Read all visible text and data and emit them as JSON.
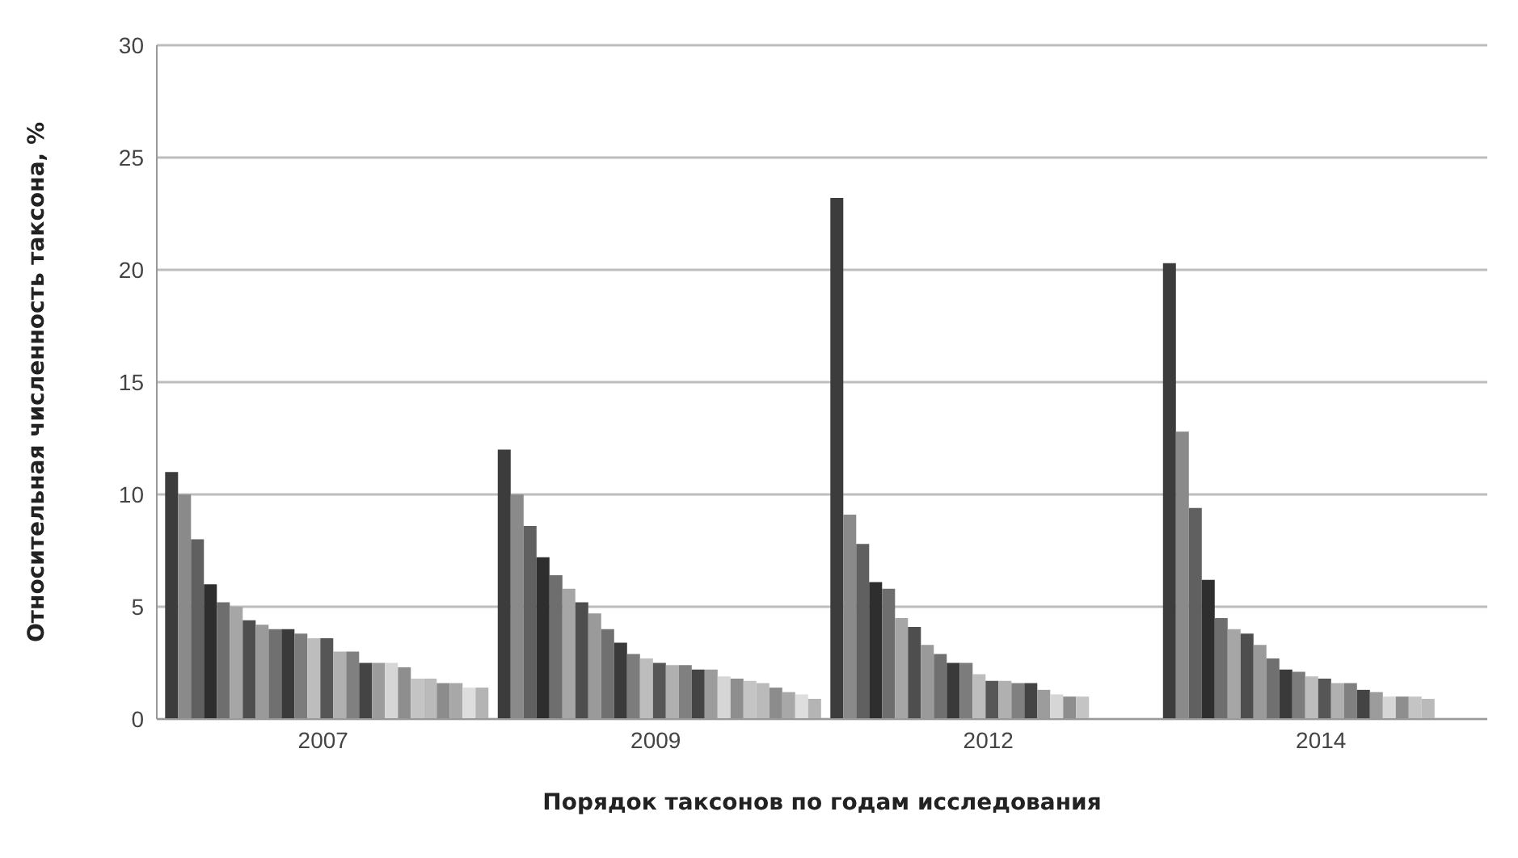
{
  "chart_data": {
    "type": "bar",
    "xlabel": "Порядок таксонов по годам исследования",
    "ylabel": "Относительная численность таксона, %",
    "categories": [
      "2007",
      "2009",
      "2012",
      "2014"
    ],
    "ylim": [
      0,
      30
    ],
    "yticks": [
      0,
      5,
      10,
      15,
      20,
      25,
      30
    ],
    "grid": "y",
    "series": [
      {
        "color": "#3c3c3c",
        "values": [
          11.0,
          12.0,
          23.2,
          20.3
        ]
      },
      {
        "color": "#8a8a8a",
        "values": [
          10.0,
          10.0,
          9.1,
          12.8
        ]
      },
      {
        "color": "#606060",
        "values": [
          8.0,
          8.6,
          7.8,
          9.4
        ]
      },
      {
        "color": "#2e2e2e",
        "values": [
          6.0,
          7.2,
          6.1,
          6.2
        ]
      },
      {
        "color": "#6e6e6e",
        "values": [
          5.2,
          6.4,
          5.8,
          4.5
        ]
      },
      {
        "color": "#a6a6a6",
        "values": [
          5.0,
          5.8,
          4.5,
          4.0
        ]
      },
      {
        "color": "#4e4e4e",
        "values": [
          4.4,
          5.2,
          4.1,
          3.8
        ]
      },
      {
        "color": "#9a9a9a",
        "values": [
          4.2,
          4.7,
          3.3,
          3.3
        ]
      },
      {
        "color": "#707070",
        "values": [
          4.0,
          4.0,
          2.9,
          2.7
        ]
      },
      {
        "color": "#3a3a3a",
        "values": [
          4.0,
          3.4,
          2.5,
          2.2
        ]
      },
      {
        "color": "#7c7c7c",
        "values": [
          3.8,
          2.9,
          2.5,
          2.1
        ]
      },
      {
        "color": "#bdbdbd",
        "values": [
          3.6,
          2.7,
          2.0,
          1.9
        ]
      },
      {
        "color": "#565656",
        "values": [
          3.6,
          2.5,
          1.7,
          1.8
        ]
      },
      {
        "color": "#b0b0b0",
        "values": [
          3.0,
          2.4,
          1.7,
          1.6
        ]
      },
      {
        "color": "#808080",
        "values": [
          3.0,
          2.4,
          1.6,
          1.6
        ]
      },
      {
        "color": "#444444",
        "values": [
          2.5,
          2.2,
          1.6,
          1.3
        ]
      },
      {
        "color": "#9c9c9c",
        "values": [
          2.5,
          2.2,
          1.3,
          1.2
        ]
      },
      {
        "color": "#d6d6d6",
        "values": [
          2.5,
          1.9,
          1.1,
          1.0
        ]
      },
      {
        "color": "#8e8e8e",
        "values": [
          2.3,
          1.8,
          1.0,
          1.0
        ]
      },
      {
        "color": "#c4c4c4",
        "values": [
          1.8,
          1.7,
          1.0,
          1.0
        ]
      },
      {
        "color": "#bababa",
        "values": [
          1.8,
          1.6,
          null,
          0.9
        ]
      },
      {
        "color": "#8c8c8c",
        "values": [
          1.6,
          1.4,
          null,
          null
        ]
      },
      {
        "color": "#a8a8a8",
        "values": [
          1.6,
          1.2,
          null,
          null
        ]
      },
      {
        "color": "#dedede",
        "values": [
          1.4,
          1.1,
          null,
          null
        ]
      },
      {
        "color": "#b4b4b4",
        "values": [
          1.4,
          0.9,
          null,
          null
        ]
      }
    ]
  }
}
